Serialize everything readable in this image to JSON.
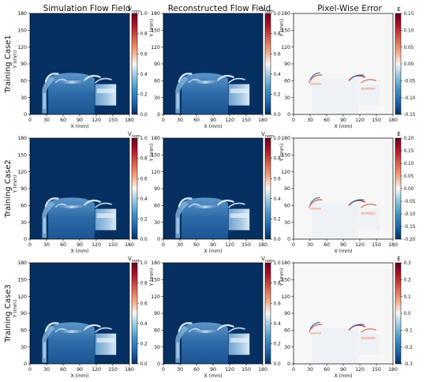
{
  "figure": {
    "column_titles": [
      "Simulation Flow Field",
      "Reconstructed Flow Field",
      "Pixel-Wise Error"
    ],
    "row_labels": [
      "Training Case1",
      "Training Case2",
      "Training Case3"
    ]
  },
  "axes": {
    "xlabel": "X (mm)",
    "ylabel": "Y (mm)",
    "xticks": [
      "0",
      "30",
      "60",
      "90",
      "120",
      "150",
      "180"
    ],
    "yticks": [
      "0",
      "30",
      "60",
      "90",
      "120",
      "150",
      "180"
    ]
  },
  "colorbars": {
    "flow": {
      "label_main": "V",
      "label_sub": "nom",
      "ticks": [
        "0.0",
        "0.2",
        "0.4",
        "0.6",
        "0.8",
        "1.0"
      ]
    },
    "error_labels": [
      "E",
      "E",
      "E"
    ],
    "error_ticks": [
      [
        "-0.15",
        "-0.10",
        "-0.05",
        "0.00",
        "0.05",
        "0.10",
        "0.15"
      ],
      [
        "-0.20",
        "-0.15",
        "-0.10",
        "-0.05",
        "0.00",
        "0.05",
        "0.10",
        "0.15",
        "0.20"
      ],
      [
        "-0.3",
        "-0.2",
        "-0.1",
        "0.0",
        "0.1",
        "0.2",
        "0.3"
      ]
    ]
  },
  "colors": {
    "flow_low": "#053061",
    "flow_high": "#f7fbff",
    "cmap_stops": [
      "#053061",
      "#2166ac",
      "#4393c3",
      "#92c5de",
      "#f7f7f7",
      "#f4a582",
      "#d6604d",
      "#b2182b",
      "#67001f"
    ],
    "error_bg": "#f7f7f7"
  },
  "chart_data": {
    "type": "heatmap",
    "panels": [
      {
        "row": "Training Case1",
        "column": "Simulation Flow Field",
        "quantity": "Vnom",
        "range": [
          0.0,
          1.0
        ]
      },
      {
        "row": "Training Case1",
        "column": "Reconstructed Flow Field",
        "quantity": "Vnom",
        "range": [
          0.0,
          1.0
        ]
      },
      {
        "row": "Training Case1",
        "column": "Pixel-Wise Error",
        "quantity": "E",
        "range": [
          -0.15,
          0.15
        ]
      },
      {
        "row": "Training Case2",
        "column": "Simulation Flow Field",
        "quantity": "Vnom",
        "range": [
          0.0,
          1.0
        ]
      },
      {
        "row": "Training Case2",
        "column": "Reconstructed Flow Field",
        "quantity": "Vnom",
        "range": [
          0.0,
          1.0
        ]
      },
      {
        "row": "Training Case2",
        "column": "Pixel-Wise Error",
        "quantity": "E",
        "range": [
          -0.2,
          0.2
        ]
      },
      {
        "row": "Training Case3",
        "column": "Simulation Flow Field",
        "quantity": "Vnom",
        "range": [
          0.0,
          1.0
        ]
      },
      {
        "row": "Training Case3",
        "column": "Reconstructed Flow Field",
        "quantity": "Vnom",
        "range": [
          0.0,
          1.0
        ]
      },
      {
        "row": "Training Case3",
        "column": "Pixel-Wise Error",
        "quantity": "E",
        "range": [
          -0.3,
          0.3
        ]
      }
    ],
    "xlim": [
      0,
      180
    ],
    "ylim": [
      0,
      180
    ],
    "xlabel": "X (mm)",
    "ylabel": "Y (mm)"
  }
}
